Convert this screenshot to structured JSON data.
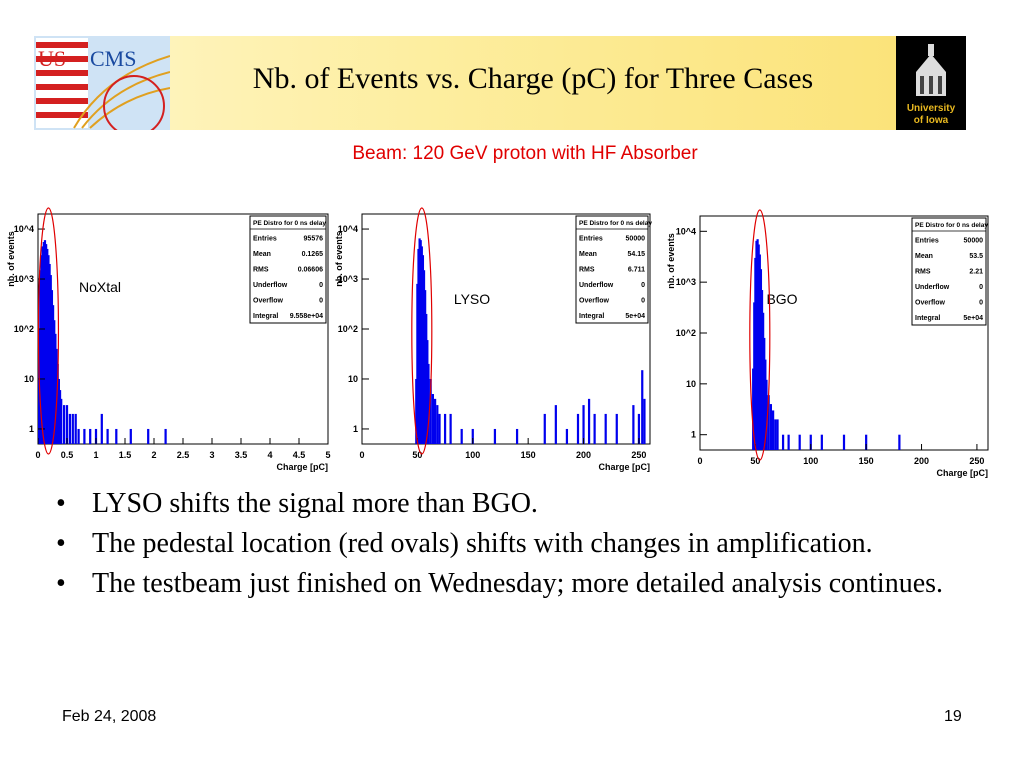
{
  "slide": {
    "title": "Nb. of Events vs. Charge (pC) for Three Cases",
    "subtitle": "Beam: 120 GeV proton with HF Absorber",
    "logo_left_text": "US CMS",
    "logo_right_text": "University of Iowa",
    "bullets": [
      "LYSO shifts the signal more than BGO.",
      "The pedestal location (red ovals) shifts with changes in amplification.",
      "The testbeam just finished on Wednesday; more detailed analysis continues."
    ],
    "footer_date": "Feb 24, 2008",
    "footer_page": "19",
    "colors": {
      "title_red": "#e00000",
      "histogram_blue": "#0000ee",
      "oval_red": "#e00000"
    }
  },
  "chart_data": [
    {
      "type": "bar",
      "label": "NoXtal",
      "ylabel": "nb. of events",
      "xlabel": "Charge [pC]",
      "yscale": "log",
      "ylim": [
        0.5,
        20000
      ],
      "xlim": [
        0,
        5
      ],
      "xticks": [
        "0",
        "0.5",
        "1",
        "1.5",
        "2",
        "2.5",
        "3",
        "3.5",
        "4",
        "4.5",
        "5"
      ],
      "yticks": [
        "1",
        "10",
        "10^2",
        "10^3",
        "10^4"
      ],
      "stats": {
        "title": "PE Distro for 0 ns delay",
        "rows": [
          [
            "Entries",
            "95576"
          ],
          [
            "Mean",
            "0.1265"
          ],
          [
            "RMS",
            "0.06606"
          ],
          [
            "Underflow",
            "0"
          ],
          [
            "Overflow",
            "0"
          ],
          [
            "Integral",
            "9.558e+04"
          ]
        ]
      },
      "x": [
        0.02,
        0.04,
        0.06,
        0.08,
        0.1,
        0.12,
        0.14,
        0.16,
        0.18,
        0.2,
        0.22,
        0.24,
        0.26,
        0.28,
        0.3,
        0.32,
        0.34,
        0.36,
        0.38,
        0.4,
        0.45,
        0.5,
        0.55,
        0.6,
        0.65,
        0.7,
        0.8,
        0.9,
        1.0,
        1.1,
        1.2,
        1.35,
        1.6,
        1.9,
        2.2
      ],
      "values": [
        100,
        1500,
        3000,
        4500,
        5500,
        6000,
        5000,
        4000,
        3000,
        2000,
        1200,
        600,
        300,
        150,
        80,
        40,
        20,
        10,
        6,
        4,
        3,
        3,
        2,
        2,
        2,
        1,
        1,
        1,
        1,
        2,
        1,
        1,
        1,
        1,
        1
      ],
      "pedestal_oval": {
        "x_center": 0.18
      }
    },
    {
      "type": "bar",
      "label": "LYSO",
      "ylabel": "nb. of events",
      "xlabel": "Charge [pC]",
      "yscale": "log",
      "ylim": [
        0.5,
        20000
      ],
      "xlim": [
        0,
        260
      ],
      "xticks": [
        "0",
        "50",
        "100",
        "150",
        "200",
        "250"
      ],
      "yticks": [
        "1",
        "10",
        "10^2",
        "10^3",
        "10^4"
      ],
      "stats": {
        "title": "PE Distro for 0 ns delay",
        "rows": [
          [
            "Entries",
            "50000"
          ],
          [
            "Mean",
            "54.15"
          ],
          [
            "RMS",
            "6.711"
          ],
          [
            "Underflow",
            "0"
          ],
          [
            "Overflow",
            "0"
          ],
          [
            "Integral",
            "5e+04"
          ]
        ]
      },
      "x": [
        49,
        50,
        51,
        52,
        53,
        54,
        55,
        56,
        57,
        58,
        59,
        60,
        62,
        64,
        66,
        68,
        70,
        75,
        80,
        90,
        100,
        120,
        140,
        165,
        175,
        185,
        195,
        200,
        205,
        210,
        220,
        230,
        245,
        250,
        253,
        255
      ],
      "values": [
        10,
        800,
        4000,
        6500,
        6000,
        4500,
        3000,
        1500,
        600,
        200,
        60,
        20,
        10,
        5,
        4,
        3,
        2,
        2,
        2,
        1,
        1,
        1,
        1,
        2,
        3,
        1,
        2,
        3,
        4,
        2,
        2,
        2,
        3,
        2,
        15,
        4
      ],
      "pedestal_oval": {
        "x_center": 54
      }
    },
    {
      "type": "bar",
      "label": "BGO",
      "ylabel": "nb. of events",
      "xlabel": "Charge [pC]",
      "yscale": "log",
      "ylim": [
        0.5,
        20000
      ],
      "xlim": [
        0,
        260
      ],
      "xticks": [
        "0",
        "50",
        "100",
        "150",
        "200",
        "250"
      ],
      "yticks": [
        "1",
        "10",
        "10^2",
        "10^3",
        "10^4"
      ],
      "stats": {
        "title": "PE Distro for 0 ns delay",
        "rows": [
          [
            "Entries",
            "50000"
          ],
          [
            "Mean",
            "53.5"
          ],
          [
            "RMS",
            "2.21"
          ],
          [
            "Underflow",
            "0"
          ],
          [
            "Overflow",
            "0"
          ],
          [
            "Integral",
            "5e+04"
          ]
        ]
      },
      "x": [
        48,
        49,
        50,
        51,
        52,
        53,
        54,
        55,
        56,
        57,
        58,
        59,
        60,
        62,
        64,
        66,
        68,
        70,
        75,
        80,
        90,
        100,
        110,
        130,
        150,
        180
      ],
      "values": [
        20,
        400,
        3000,
        6500,
        7000,
        5500,
        3500,
        1800,
        700,
        250,
        80,
        30,
        12,
        6,
        4,
        3,
        2,
        2,
        1,
        1,
        1,
        1,
        1,
        1,
        1,
        1
      ],
      "pedestal_oval": {
        "x_center": 54
      }
    }
  ]
}
